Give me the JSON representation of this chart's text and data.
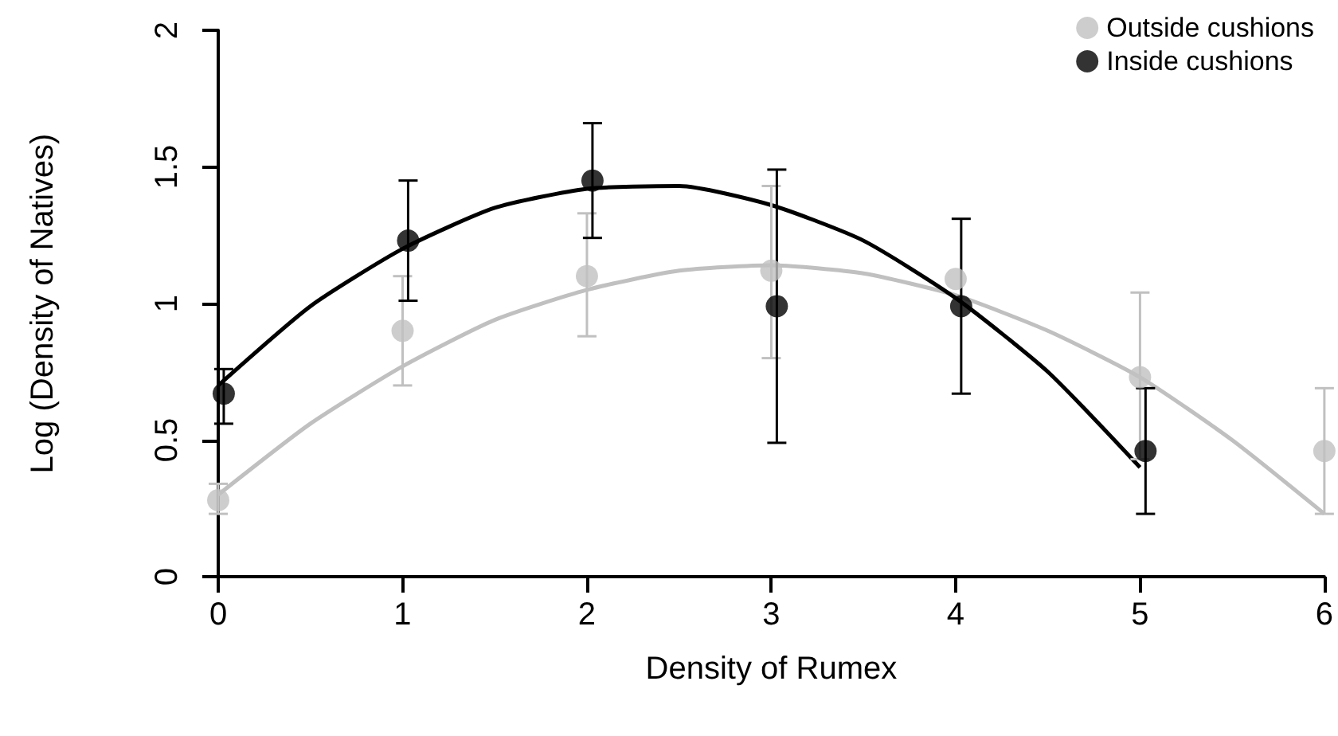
{
  "chart_data": {
    "type": "scatter",
    "xlabel": "Density of Rumex",
    "ylabel": "Log (Density of Natives)",
    "xlim": [
      0,
      6
    ],
    "xticks": [
      0,
      1,
      2,
      3,
      4,
      5,
      6
    ],
    "ylim": [
      0,
      2
    ],
    "yticks": [
      0,
      0.5,
      1,
      1.5,
      2
    ],
    "grid": false,
    "legend": "top right",
    "series": [
      {
        "name": "Outside cushions",
        "color": "#c0c0c0",
        "marker": "circle",
        "x": [
          0,
          1,
          2,
          3,
          4,
          5,
          6
        ],
        "values": [
          0.28,
          0.9,
          1.1,
          1.12,
          1.09,
          0.73,
          0.46
        ],
        "errors": [
          [
            0.23,
            0.34
          ],
          [
            0.7,
            1.1
          ],
          [
            0.88,
            1.33
          ],
          [
            0.8,
            1.43
          ],
          null,
          [
            0.43,
            1.04
          ],
          [
            0.23,
            0.69
          ]
        ]
      },
      {
        "name": "Inside cushions",
        "color": "#000000",
        "marker": "circle",
        "x": [
          0.03,
          1.03,
          2.03,
          3.03,
          4.03,
          5.03
        ],
        "values": [
          0.67,
          1.23,
          1.45,
          0.99,
          0.99,
          0.46
        ],
        "errors": [
          [
            0.56,
            0.76
          ],
          [
            1.01,
            1.45
          ],
          [
            1.24,
            1.66
          ],
          [
            0.49,
            1.49
          ],
          [
            0.67,
            1.31
          ],
          [
            0.23,
            0.69
          ]
        ]
      },
      {
        "type": "line",
        "color": "#c0c0c0",
        "marker": "none",
        "x": [
          0,
          0.5,
          1,
          1.5,
          2,
          2.5,
          3,
          3.5,
          4,
          4.5,
          5,
          5.5,
          6
        ],
        "values": [
          0.3,
          0.56,
          0.77,
          0.94,
          1.05,
          1.12,
          1.14,
          1.11,
          1.03,
          0.9,
          0.73,
          0.5,
          0.23
        ]
      },
      {
        "type": "line",
        "color": "#000000",
        "marker": "none",
        "x": [
          0,
          0.5,
          1,
          1.5,
          2,
          2.5,
          3,
          3.5,
          4,
          4.5,
          5
        ],
        "values": [
          0.7,
          0.99,
          1.2,
          1.35,
          1.42,
          1.43,
          1.36,
          1.23,
          1.02,
          0.75,
          0.4
        ]
      }
    ]
  }
}
